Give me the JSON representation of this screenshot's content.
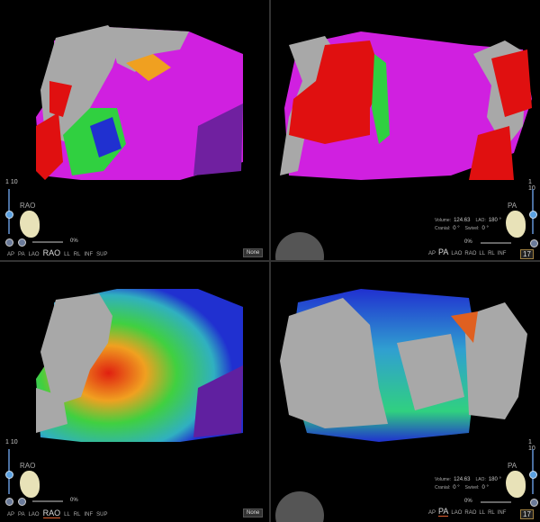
{
  "panels": [
    {
      "id": "top-left",
      "map": "activation",
      "scale": "1 10",
      "view": "RAO",
      "percent": "0%",
      "dropdown": "None",
      "nav": [
        "AP",
        "PA",
        "LAO",
        "RAO",
        "LL",
        "RL",
        "INF",
        "SUP"
      ],
      "active": "RAO"
    },
    {
      "id": "top-right",
      "map": "activation",
      "scale": "1 10",
      "view": "PA",
      "percent": "0%",
      "nav": [
        "AP",
        "PA",
        "LAO",
        "RAO",
        "LL",
        "RL",
        "INF"
      ],
      "active": "PA",
      "info": {
        "volume_label": "Volume:",
        "volume": "124.63",
        "lao_label": "LAO:",
        "lao": "180 °",
        "cranial_label": "Cranial:",
        "cranial": "0 °",
        "swivel_label": "Swivel:",
        "swivel": "0 °"
      },
      "counter": "17"
    },
    {
      "id": "bottom-left",
      "map": "voltage",
      "scale": "1 10",
      "view": "RAO",
      "percent": "0%",
      "dropdown": "None",
      "nav": [
        "AP",
        "PA",
        "LAO",
        "RAO",
        "LL",
        "RL",
        "INF",
        "SUP"
      ],
      "active": "RAO"
    },
    {
      "id": "bottom-right",
      "map": "voltage",
      "scale": "1 10",
      "view": "PA",
      "percent": "0%",
      "nav": [
        "AP",
        "PA",
        "LAO",
        "RAO",
        "LL",
        "RL",
        "INF"
      ],
      "active": "PA",
      "info": {
        "volume_label": "Volume:",
        "volume": "124.63",
        "lao_label": "LAO:",
        "lao": "180 °",
        "cranial_label": "Cranial:",
        "cranial": "0 °",
        "swivel_label": "Swivel:",
        "swivel": "0 °"
      },
      "counter": "17"
    }
  ],
  "colors": {
    "scar": "#a8a8a8",
    "red": "#e01010",
    "magenta": "#d020e0",
    "green": "#30d040",
    "blue": "#2030d0"
  }
}
